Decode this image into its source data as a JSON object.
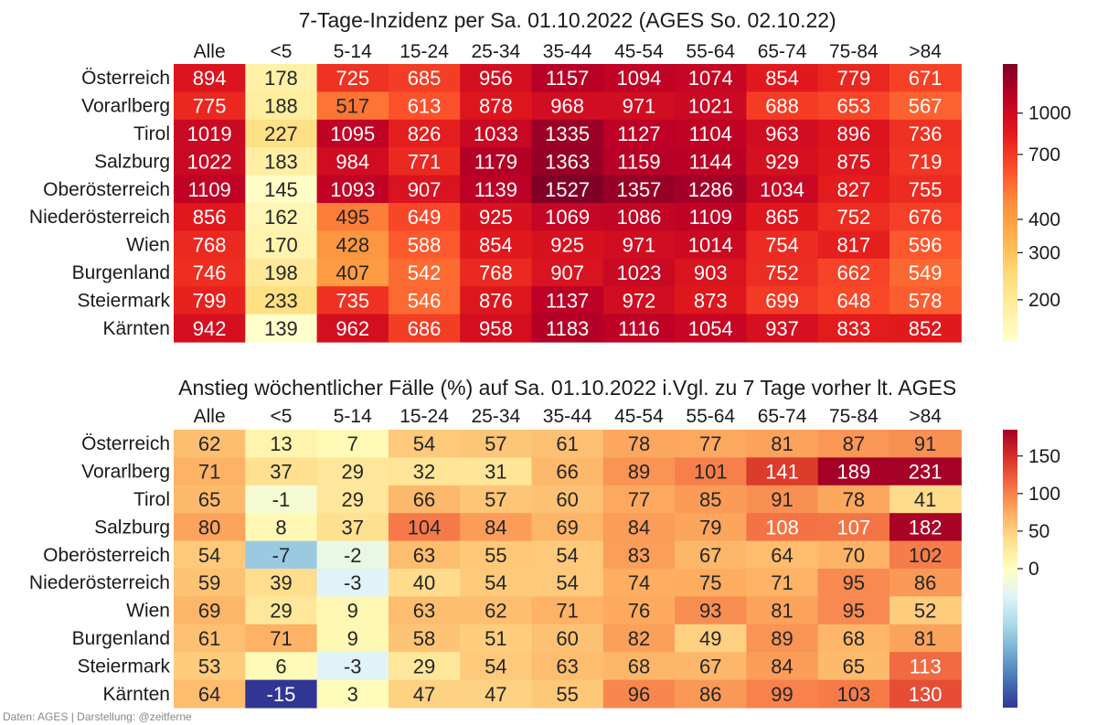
{
  "credit": "Daten: AGES | Darstellung: @zeitferne",
  "chart_data": [
    {
      "type": "heatmap",
      "title": "7-Tage-Inzidenz per Sa. 01.10.2022  (AGES So. 02.10.22)",
      "columns": [
        "Alle",
        "<5",
        "5-14",
        "15-24",
        "25-34",
        "35-44",
        "45-54",
        "55-64",
        "65-74",
        "75-84",
        ">84"
      ],
      "rows": [
        "Österreich",
        "Vorarlberg",
        "Tirol",
        "Salzburg",
        "Oberösterreich",
        "Niederösterreich",
        "Wien",
        "Burgenland",
        "Steiermark",
        "Kärnten"
      ],
      "values": [
        [
          894,
          178,
          725,
          685,
          956,
          1157,
          1094,
          1074,
          854,
          779,
          671
        ],
        [
          775,
          188,
          517,
          613,
          878,
          968,
          971,
          1021,
          688,
          653,
          567
        ],
        [
          1019,
          227,
          1095,
          826,
          1033,
          1335,
          1127,
          1104,
          963,
          896,
          736
        ],
        [
          1022,
          183,
          984,
          771,
          1179,
          1363,
          1159,
          1144,
          929,
          875,
          719
        ],
        [
          1109,
          145,
          1093,
          907,
          1139,
          1527,
          1357,
          1286,
          1034,
          827,
          755
        ],
        [
          856,
          162,
          495,
          649,
          925,
          1069,
          1086,
          1109,
          865,
          752,
          676
        ],
        [
          768,
          170,
          428,
          588,
          854,
          925,
          971,
          1014,
          754,
          817,
          596
        ],
        [
          746,
          198,
          407,
          542,
          768,
          907,
          1023,
          903,
          752,
          662,
          549
        ],
        [
          799,
          233,
          735,
          546,
          876,
          1137,
          972,
          873,
          699,
          648,
          578
        ],
        [
          942,
          139,
          962,
          686,
          958,
          1183,
          1116,
          1054,
          937,
          833,
          852
        ]
      ],
      "colormap": "YlOrRd",
      "scale": "log",
      "vlim": [
        139,
        1527
      ],
      "colorbar_ticks": [
        200,
        300,
        400,
        700,
        1000
      ]
    },
    {
      "type": "heatmap",
      "title": "Anstieg wöchentlicher Fälle (%) auf Sa. 01.10.2022 i.Vgl. zu 7 Tage vorher lt. AGES",
      "columns": [
        "Alle",
        "<5",
        "5-14",
        "15-24",
        "25-34",
        "35-44",
        "45-54",
        "55-64",
        "65-74",
        "75-84",
        ">84"
      ],
      "rows": [
        "Österreich",
        "Vorarlberg",
        "Tirol",
        "Salzburg",
        "Oberösterreich",
        "Niederösterreich",
        "Wien",
        "Burgenland",
        "Steiermark",
        "Kärnten"
      ],
      "values": [
        [
          62,
          13,
          7,
          54,
          57,
          61,
          78,
          77,
          81,
          87,
          91
        ],
        [
          71,
          37,
          29,
          32,
          31,
          66,
          89,
          101,
          141,
          189,
          231
        ],
        [
          65,
          -1,
          29,
          66,
          57,
          60,
          77,
          85,
          91,
          78,
          41
        ],
        [
          80,
          8,
          37,
          104,
          84,
          69,
          84,
          79,
          108,
          107,
          182
        ],
        [
          54,
          -7,
          -2,
          63,
          55,
          54,
          83,
          67,
          64,
          70,
          102
        ],
        [
          59,
          39,
          -3,
          40,
          54,
          54,
          74,
          75,
          71,
          95,
          86
        ],
        [
          69,
          29,
          9,
          63,
          62,
          71,
          76,
          93,
          81,
          95,
          52
        ],
        [
          61,
          71,
          9,
          58,
          51,
          60,
          82,
          49,
          89,
          68,
          81
        ],
        [
          53,
          6,
          -3,
          29,
          54,
          63,
          68,
          67,
          84,
          65,
          113
        ],
        [
          64,
          -15,
          3,
          47,
          47,
          55,
          96,
          86,
          99,
          103,
          130
        ]
      ],
      "colormap": "RdYlBu_r",
      "scale": "diverging",
      "vlim": [
        -15,
        185
      ],
      "center": 0,
      "colorbar_ticks": [
        0,
        50,
        100,
        150
      ]
    }
  ]
}
